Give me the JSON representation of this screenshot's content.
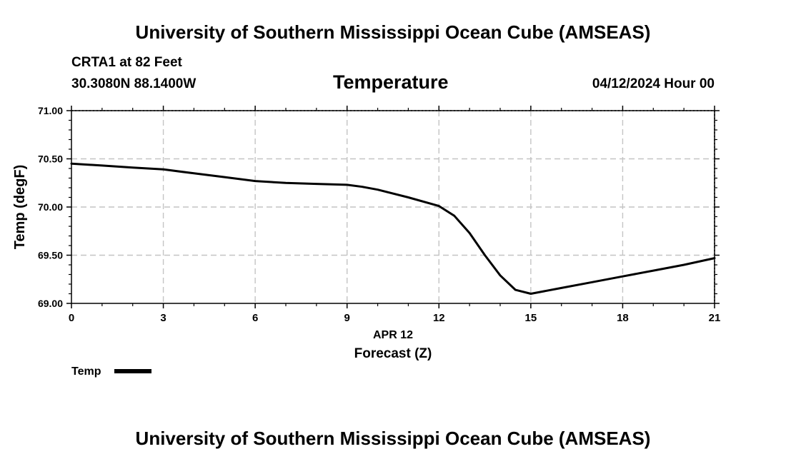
{
  "header": {
    "title": "University of Southern Mississippi Ocean Cube (AMSEAS)",
    "station": "CRTA1 at 82 Feet",
    "coords": "30.3080N  88.1400W",
    "variable": "Temperature",
    "date": "04/12/2024 Hour 00"
  },
  "footer": {
    "title": "University of Southern Mississippi Ocean Cube (AMSEAS)"
  },
  "chart_data": {
    "type": "line",
    "title": "Temperature",
    "xlabel": "Forecast (Z)",
    "xlabel_date": "APR 12",
    "ylabel": "Temp (degF)",
    "xlim": [
      0,
      21
    ],
    "ylim": [
      69.0,
      71.0
    ],
    "x_ticks": [
      0,
      3,
      6,
      9,
      12,
      15,
      18,
      21
    ],
    "x_tick_labels": [
      "0",
      "3",
      "6",
      "9",
      "12",
      "15",
      "18",
      "21"
    ],
    "y_ticks": [
      69.0,
      69.5,
      70.0,
      70.5,
      71.0
    ],
    "y_tick_labels": [
      "69.00",
      "69.50",
      "70.00",
      "70.50",
      "71.00"
    ],
    "grid": true,
    "legend": "bottom-left",
    "series": [
      {
        "name": "Temp",
        "color": "#000000",
        "x": [
          0,
          1,
          2,
          3,
          4,
          5,
          6,
          7,
          8,
          9,
          9.5,
          10,
          11,
          12,
          12.5,
          13,
          13.5,
          14,
          14.5,
          15,
          16,
          17,
          18,
          19,
          20,
          21
        ],
        "values": [
          70.45,
          70.43,
          70.41,
          70.39,
          70.35,
          70.31,
          70.27,
          70.25,
          70.24,
          70.23,
          70.21,
          70.18,
          70.1,
          70.01,
          69.91,
          69.73,
          69.5,
          69.29,
          69.14,
          69.1,
          69.16,
          69.22,
          69.28,
          69.34,
          69.4,
          69.47
        ]
      }
    ]
  }
}
